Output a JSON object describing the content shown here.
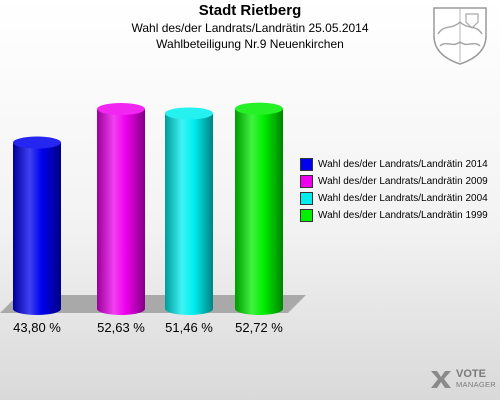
{
  "title": "Stadt Rietberg",
  "subtitle1": "Wahl des/der Landrats/Landrätin 25.05.2014",
  "subtitle2": "Wahlbeteiligung Nr.9 Neuenkirchen",
  "colors": {
    "s2014": "#0000ee",
    "s2009": "#ee00ee",
    "s2004": "#00eeee",
    "s1999": "#00ee00"
  },
  "logo": {
    "line1": "VOTE",
    "line2": "MANAGER"
  },
  "chart_data": {
    "type": "bar",
    "title": "Stadt Rietberg",
    "categories": [
      "Wahl des/der Landrats/Landrätin 2014",
      "Wahl des/der Landrats/Landrätin 2009",
      "Wahl des/der Landrats/Landrätin 2004",
      "Wahl des/der Landrats/Landrätin 1999"
    ],
    "values": [
      43.8,
      52.63,
      51.46,
      52.72
    ],
    "value_labels": [
      "43,80 %",
      "52,63 %",
      "51,46 %",
      "52,72 %"
    ],
    "legend_position": "right",
    "grid": false
  }
}
